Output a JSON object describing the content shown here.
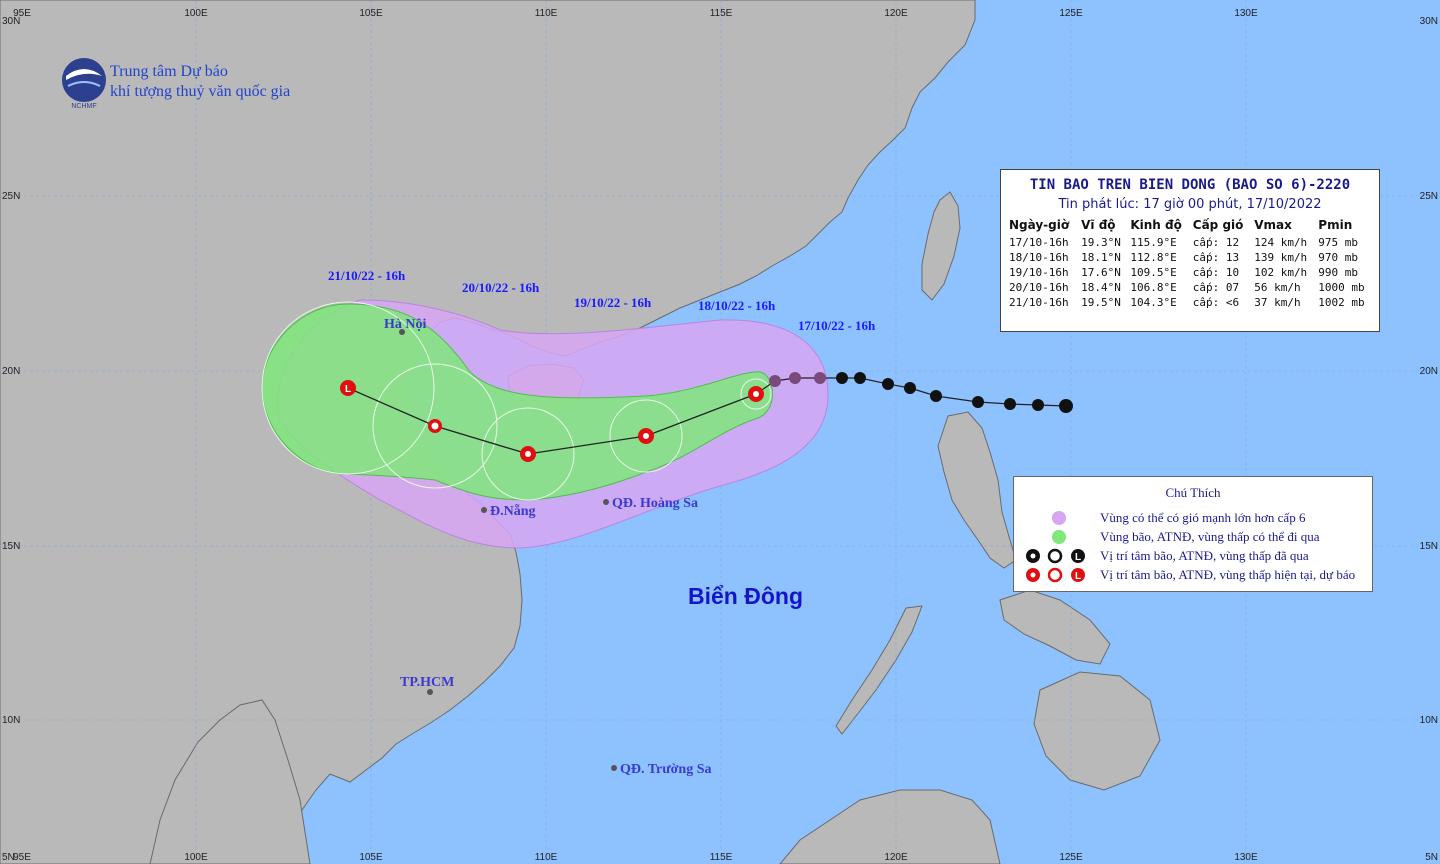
{
  "header": {
    "org_line1": "Trung tâm Dự báo",
    "org_line2": "khí tượng thuỷ văn quốc gia",
    "logo_text": "NCHMF"
  },
  "info": {
    "title": "TIN BAO TREN BIEN DONG (BAO SO 6)-2220",
    "subtitle": "Tin phát lúc: 17 giờ 00 phút, 17/10/2022",
    "columns": [
      "Ngày-giờ",
      "Vĩ độ",
      "Kinh độ",
      "Cấp gió",
      "Vmax",
      "Pmin"
    ],
    "rows": [
      [
        "17/10-16h",
        "19.3°N",
        "115.9°E",
        "cấp: 12",
        "124 km/h",
        "975 mb"
      ],
      [
        "18/10-16h",
        "18.1°N",
        "112.8°E",
        "cấp: 13",
        "139 km/h",
        "970 mb"
      ],
      [
        "19/10-16h",
        "17.6°N",
        "109.5°E",
        "cấp: 10",
        "102 km/h",
        "990 mb"
      ],
      [
        "20/10-16h",
        "18.4°N",
        "106.8°E",
        "cấp: 07",
        "56 km/h",
        "1000 mb"
      ],
      [
        "21/10-16h",
        "19.5°N",
        "104.3°E",
        "cấp: <6",
        "37 km/h",
        "1002 mb"
      ]
    ]
  },
  "labels": {
    "date1": "17/10/22 - 16h",
    "date2": "18/10/22 - 16h",
    "date3": "19/10/22 - 16h",
    "date4": "20/10/22 - 16h",
    "date5": "21/10/22 - 16h",
    "hanoi": "Hà Nội",
    "danang": "Đ.Nẵng",
    "hoangsa": "QĐ. Hoàng Sa",
    "truongsa": "QĐ. Trường Sa",
    "hcm": "TP.HCM",
    "sea": "Biển Đông"
  },
  "axes": {
    "top": [
      "95E",
      "100E",
      "105E",
      "110E",
      "115E",
      "120E",
      "125E",
      "130E"
    ],
    "bottom": [
      "95E",
      "100E",
      "105E",
      "110E",
      "115E",
      "120E",
      "125E",
      "130E"
    ],
    "left": [
      "30N",
      "25N",
      "20N",
      "15N",
      "10N",
      "5N"
    ],
    "right": [
      "30N",
      "25N",
      "20N",
      "15N",
      "10N",
      "5N"
    ]
  },
  "legend": {
    "title": "Chú Thích",
    "item1": "Vùng có thể có gió mạnh lớn hơn cấp 6",
    "item2": "Vùng bão, ATNĐ, vùng thấp có thể đi qua",
    "item3": "Vị trí tâm bão, ATNĐ, vùng thấp đã qua",
    "item4": "Vị trí tâm bão, ATNĐ, vùng thấp hiện tại, dự báo"
  },
  "colors": {
    "sea": "#8ec2ff",
    "land": "#b9b9b9",
    "wind_zone": "#d6a6f2",
    "storm_zone": "#7fe87a",
    "forecast": "#e01010",
    "past": "#111111"
  }
}
